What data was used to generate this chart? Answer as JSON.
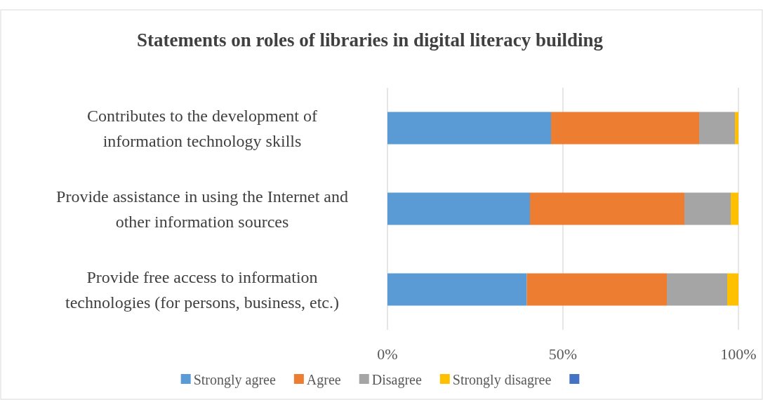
{
  "chart_data": {
    "type": "bar",
    "orientation": "horizontal",
    "stacked": true,
    "title": "Statements on roles of libraries in digital literacy building",
    "categories": [
      "Contributes to the development of information technology skills",
      "Provide assistance in using the Internet and other information sources",
      "Provide free access to information technologies (for persons, business, etc.)"
    ],
    "series": [
      {
        "name": "Strongly agree",
        "color": "#5b9bd5",
        "values": [
          46.6,
          40.6,
          39.7
        ]
      },
      {
        "name": "Agree",
        "color": "#ed7d31",
        "values": [
          42.2,
          44.0,
          39.9
        ]
      },
      {
        "name": "Disagree",
        "color": "#a5a5a5",
        "values": [
          10.2,
          13.2,
          17.2
        ]
      },
      {
        "name": "Strongly disagree",
        "color": "#ffc000",
        "values": [
          1.0,
          2.2,
          3.2
        ]
      },
      {
        "color": "#4472c4",
        "values": [
          null,
          null,
          null
        ]
      }
    ],
    "xlim": [
      0,
      100
    ],
    "xticks": [
      {
        "value": 0,
        "label": "0%"
      },
      {
        "value": 50,
        "label": "50%"
      },
      {
        "value": 100,
        "label": "100%"
      }
    ],
    "grid": "x",
    "legend": "bottom"
  }
}
